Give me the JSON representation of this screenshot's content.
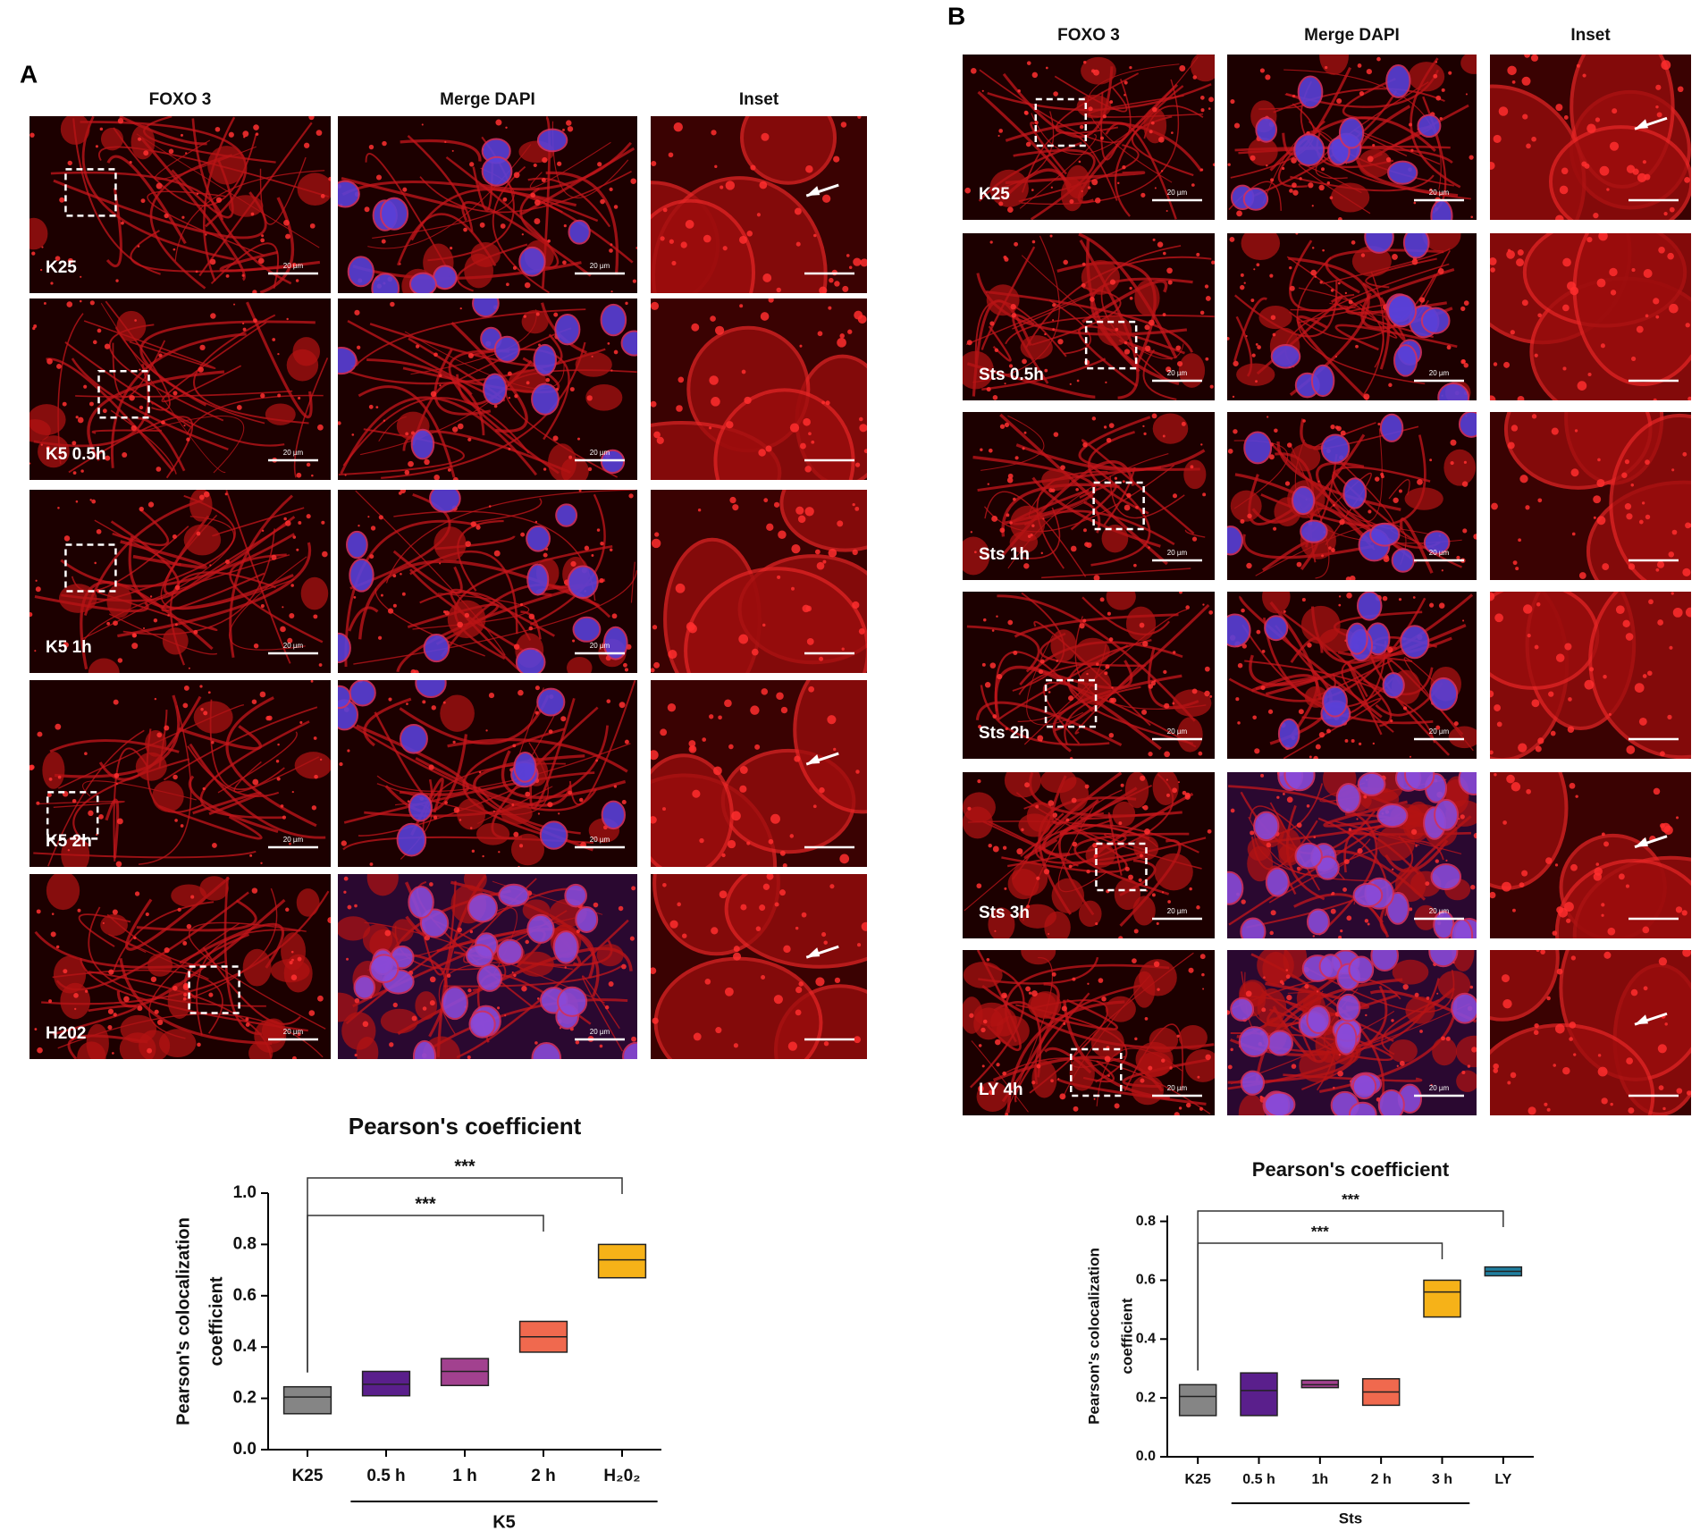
{
  "panels": {
    "A": {
      "letter": "A",
      "columns": [
        "FOXO 3",
        "Merge DAPI",
        "Inset"
      ],
      "rows": [
        "K25",
        "K5 0.5h",
        "K5 1h",
        "K5 2h",
        "H202"
      ]
    },
    "B": {
      "letter": "B",
      "columns": [
        "FOXO 3",
        "Merge DAPI",
        "Inset"
      ],
      "rows": [
        "K25",
        "Sts 0.5h",
        "Sts 1h",
        "Sts 2h",
        "Sts 3h",
        "LY 4h"
      ]
    },
    "scale_label": "20 µm"
  },
  "chart_data": [
    {
      "type": "box",
      "title": "Pearson's coefficient",
      "ylabel": [
        "Pearson's colocalization",
        "coefficient"
      ],
      "categories": [
        "K25",
        "0.5 h",
        "1 h",
        "2 h",
        "H₂0₂"
      ],
      "low": [
        0.14,
        0.21,
        0.25,
        0.38,
        0.67
      ],
      "median": [
        0.205,
        0.255,
        0.305,
        0.44,
        0.74
      ],
      "high": [
        0.245,
        0.305,
        0.355,
        0.5,
        0.8
      ],
      "colors": [
        "#858585",
        "#5a1f8c",
        "#a2418f",
        "#f0694e",
        "#f6b218"
      ],
      "ylim": [
        0,
        1
      ],
      "yticks": [
        {
          "value": 0,
          "label": "0.0"
        },
        0.2,
        0.4,
        0.6,
        0.8,
        {
          "value": 1,
          "label": "1.0"
        }
      ],
      "group": {
        "label": "K5",
        "from": "0.5 h",
        "to": "H₂0₂"
      },
      "brackets": [
        {
          "label": "***",
          "from": "K25",
          "to": "2 h"
        },
        {
          "label": "***",
          "from": "K25",
          "to": "H₂0₂"
        }
      ]
    },
    {
      "type": "box",
      "title": "Pearson's coefficient",
      "ylabel": [
        "Pearson's colocalization",
        "coefficient"
      ],
      "categories": [
        "K25",
        "0.5 h",
        "1h",
        "2 h",
        "3 h",
        "LY"
      ],
      "low": [
        0.14,
        0.14,
        0.235,
        0.175,
        0.475,
        0.615
      ],
      "median": [
        0.205,
        0.225,
        0.245,
        0.22,
        0.56,
        0.63
      ],
      "high": [
        0.245,
        0.285,
        0.26,
        0.265,
        0.6,
        0.645
      ],
      "colors": [
        "#858585",
        "#5a1f8c",
        "#a2418f",
        "#f0694e",
        "#f6b218",
        "#1f7fa0"
      ],
      "ylim": [
        0,
        0.82
      ],
      "yticks": [
        {
          "value": 0,
          "label": "0.0"
        },
        0.2,
        0.4,
        0.6,
        0.8
      ],
      "group": {
        "label": "Sts",
        "from": "0.5 h",
        "to": "3 h"
      },
      "brackets": [
        {
          "label": "***",
          "from": "K25",
          "to": "3 h"
        },
        {
          "label": "***",
          "from": "K25",
          "to": "LY"
        }
      ]
    }
  ]
}
